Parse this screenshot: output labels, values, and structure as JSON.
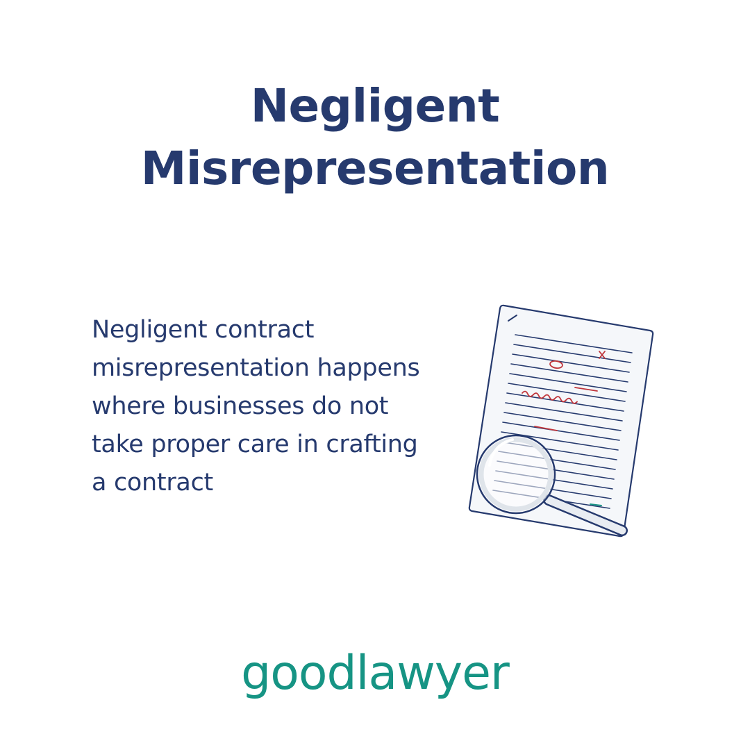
{
  "header": {
    "title_line1": "Negligent",
    "title_line2": "Misrepresentation"
  },
  "main": {
    "description": "Negligent contract misrepresentation happens where businesses do not take proper care in crafting a contract",
    "illustration_icon": "contract-magnifier-icon"
  },
  "footer": {
    "brand": "goodlawyer"
  },
  "colors": {
    "title": "#263a6e",
    "text": "#263a6e",
    "brand": "#169484",
    "markup_red": "#c0353b",
    "paper": "#f5f7fa"
  }
}
